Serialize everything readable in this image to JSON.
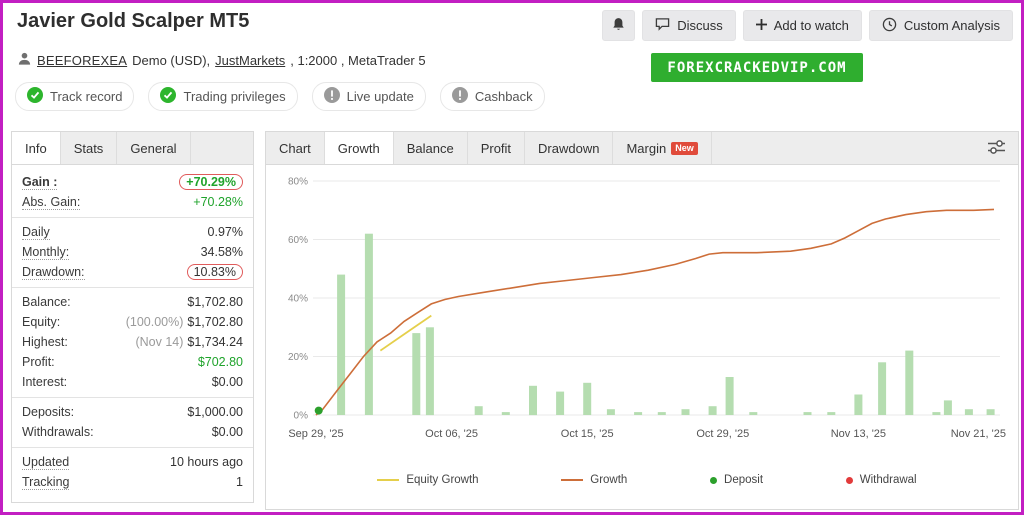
{
  "page": {
    "border_color": "#c21fc2"
  },
  "header": {
    "title": "Javier Gold Scalper MT5",
    "discuss_label": "Discuss",
    "add_to_watch_label": "Add to watch",
    "custom_analysis_label": "Custom Analysis"
  },
  "account": {
    "user": "BEEFOREXEA",
    "details_prefix": "Demo (USD),",
    "broker": "JustMarkets",
    "details_suffix": ", 1:2000 , MetaTrader 5",
    "banner_text": "FOREXCRACKEDVIP.COM",
    "banner_color": "#2fae2f"
  },
  "badges": [
    {
      "label": "Track record",
      "status": "verified"
    },
    {
      "label": "Trading privileges",
      "status": "verified"
    },
    {
      "label": "Live update",
      "status": "info"
    },
    {
      "label": "Cashback",
      "status": "info"
    }
  ],
  "left_panel": {
    "tabs": [
      {
        "label": "Info",
        "active": true
      },
      {
        "label": "Stats",
        "active": false
      },
      {
        "label": "General",
        "active": false
      }
    ],
    "groups": [
      [
        {
          "label": "Gain :",
          "value": "+70.29%",
          "color": "green",
          "boxed": true,
          "dotted": true,
          "bold": true
        },
        {
          "label": "Abs. Gain:",
          "value": "+70.28%",
          "color": "green",
          "dotted": true
        }
      ],
      [
        {
          "label": "Daily",
          "value": "0.97%",
          "dotted": true
        },
        {
          "label": "Monthly:",
          "value": "34.58%",
          "dotted": true
        },
        {
          "label": "Drawdown:",
          "value": "10.83%",
          "boxed": true,
          "dotted": true
        }
      ],
      [
        {
          "label": "Balance:",
          "value": "$1,702.80"
        },
        {
          "label": "Equity:",
          "prefix": "(100.00%)",
          "value": "$1,702.80"
        },
        {
          "label": "Highest:",
          "prefix": "(Nov 14)",
          "value": "$1,734.24"
        },
        {
          "label": "Profit:",
          "value": "$702.80",
          "color": "green"
        },
        {
          "label": "Interest:",
          "value": "$0.00"
        }
      ],
      [
        {
          "label": "Deposits:",
          "value": "$1,000.00"
        },
        {
          "label": "Withdrawals:",
          "value": "$0.00"
        }
      ],
      [
        {
          "label": "Updated",
          "value": "10 hours ago",
          "dotted": true
        },
        {
          "label": "Tracking",
          "value": "1",
          "dotted": true
        }
      ]
    ]
  },
  "right_panel": {
    "tabs": [
      {
        "label": "Chart",
        "active": false
      },
      {
        "label": "Growth",
        "active": true
      },
      {
        "label": "Balance",
        "active": false
      },
      {
        "label": "Profit",
        "active": false
      },
      {
        "label": "Drawdown",
        "active": false
      },
      {
        "label": "Margin",
        "active": false,
        "badge": "New"
      }
    ]
  },
  "chart_data": {
    "type": "bar+line",
    "title": "Growth",
    "ylim": [
      0,
      80
    ],
    "y_ticks": [
      0,
      20,
      40,
      60,
      80
    ],
    "x_ticks": [
      "Sep 29, '25",
      "Oct 06, '25",
      "Oct 15, '25",
      "Oct 29, '25",
      "Nov 13, '25",
      "Nov 21, '25"
    ],
    "x_tick_pos": [
      0,
      0.2,
      0.4,
      0.6,
      0.8,
      1
    ],
    "bars": {
      "label": "Daily gain bars",
      "color": "#b5ddb0",
      "points": [
        [
          0.037,
          48
        ],
        [
          0.078,
          62
        ],
        [
          0.148,
          28
        ],
        [
          0.168,
          30
        ],
        [
          0.24,
          3
        ],
        [
          0.28,
          1
        ],
        [
          0.32,
          10
        ],
        [
          0.36,
          8
        ],
        [
          0.4,
          11
        ],
        [
          0.435,
          2
        ],
        [
          0.475,
          1
        ],
        [
          0.51,
          1
        ],
        [
          0.545,
          2
        ],
        [
          0.585,
          3
        ],
        [
          0.61,
          13
        ],
        [
          0.645,
          1
        ],
        [
          0.725,
          1
        ],
        [
          0.76,
          1
        ],
        [
          0.8,
          7
        ],
        [
          0.835,
          18
        ],
        [
          0.875,
          22
        ],
        [
          0.915,
          1
        ],
        [
          0.932,
          5
        ],
        [
          0.963,
          2
        ],
        [
          0.995,
          2
        ]
      ]
    },
    "growth_line": {
      "label": "Growth",
      "color": "#cd6e39",
      "points": [
        [
          0,
          0
        ],
        [
          0.01,
          2
        ],
        [
          0.03,
          8
        ],
        [
          0.05,
          14
        ],
        [
          0.07,
          20
        ],
        [
          0.09,
          25
        ],
        [
          0.11,
          28
        ],
        [
          0.13,
          32
        ],
        [
          0.15,
          35
        ],
        [
          0.17,
          38
        ],
        [
          0.19,
          39.5
        ],
        [
          0.21,
          40.5
        ],
        [
          0.25,
          42
        ],
        [
          0.29,
          43.5
        ],
        [
          0.33,
          45
        ],
        [
          0.37,
          46
        ],
        [
          0.41,
          47
        ],
        [
          0.45,
          48
        ],
        [
          0.49,
          49.5
        ],
        [
          0.53,
          51.5
        ],
        [
          0.56,
          53.5
        ],
        [
          0.58,
          55
        ],
        [
          0.6,
          55.5
        ],
        [
          0.65,
          55.5
        ],
        [
          0.7,
          56
        ],
        [
          0.73,
          57
        ],
        [
          0.76,
          58.5
        ],
        [
          0.78,
          60.5
        ],
        [
          0.8,
          63
        ],
        [
          0.82,
          65.5
        ],
        [
          0.84,
          67
        ],
        [
          0.87,
          68.5
        ],
        [
          0.9,
          69.5
        ],
        [
          0.93,
          70
        ],
        [
          0.97,
          70
        ],
        [
          1,
          70.3
        ]
      ]
    },
    "equity_line": {
      "label": "Equity Growth",
      "color": "#e5cf4b",
      "points": [
        [
          0.095,
          22
        ],
        [
          0.12,
          26
        ],
        [
          0.145,
          30
        ],
        [
          0.17,
          34
        ]
      ]
    },
    "markers": [
      {
        "type": "deposit",
        "x": 0.004,
        "y": 1.5,
        "color": "#2ca02c"
      }
    ],
    "legend": [
      {
        "label": "Equity Growth",
        "swatch": "line",
        "color": "#e5cf4b"
      },
      {
        "label": "Growth",
        "swatch": "line",
        "color": "#cd6e39"
      },
      {
        "label": "Deposit",
        "swatch": "dot",
        "color": "#2ca02c"
      },
      {
        "label": "Withdrawal",
        "swatch": "dot",
        "color": "#e23b3b"
      }
    ]
  }
}
